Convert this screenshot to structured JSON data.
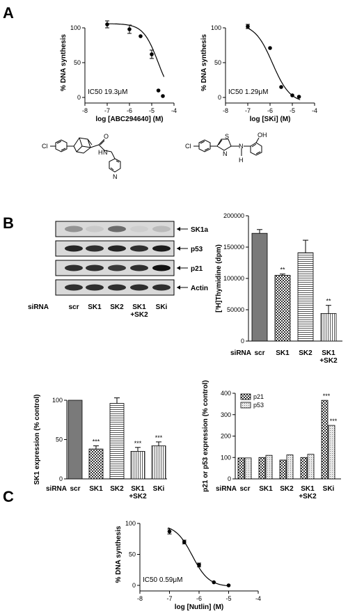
{
  "panels": {
    "a": "A",
    "b": "B",
    "c": "C"
  },
  "chart_data": [
    {
      "id": "a1",
      "type": "scatter",
      "panel": "A",
      "xlabel": "log [ABC294640] (M)",
      "ylabel": "% DNA synthesis",
      "xlim": [
        -8,
        -4
      ],
      "ylim": [
        0,
        100
      ],
      "xticks": [
        "-8",
        "-7",
        "-6",
        "-5",
        "-4"
      ],
      "yticks": [
        "0",
        "50",
        "100"
      ],
      "x": [
        -7,
        -6,
        -5.5,
        -5,
        -4.7,
        -4.5
      ],
      "y": [
        105,
        98,
        88,
        62,
        10,
        2
      ],
      "err": [
        5,
        6,
        0,
        6,
        0,
        0
      ],
      "fit": {
        "top": 106,
        "bottom": -5,
        "log_ic50": -4.714,
        "hill": 1.3
      },
      "annotation": "IC50 19.3μM"
    },
    {
      "id": "a2",
      "type": "scatter",
      "panel": "A",
      "xlabel": "log [SKi] (M)",
      "ylabel": "% DNA synthesis",
      "xlim": [
        -8,
        -4
      ],
      "ylim": [
        0,
        100
      ],
      "xticks": [
        "-8",
        "-7",
        "-6",
        "-5",
        "-4"
      ],
      "yticks": [
        "0",
        "50",
        "100"
      ],
      "x": [
        -7,
        -6,
        -5.5,
        -5,
        -4.7
      ],
      "y": [
        102,
        71,
        15,
        3,
        1
      ],
      "err": [
        3,
        0,
        0,
        0,
        0
      ],
      "fit": {
        "top": 106,
        "bottom": -8,
        "log_ic50": -5.889,
        "hill": 1.1
      },
      "annotation": "IC50 1.29μM"
    },
    {
      "id": "b1",
      "type": "bar",
      "panel": "B",
      "ylabel": "[³H]Thymidine (dpm)",
      "row_label": "siRNA",
      "ylim": [
        0,
        200000
      ],
      "yticks": [
        "0",
        "50000",
        "100000",
        "150000",
        "200000"
      ],
      "categories": [
        "scr",
        "SK1",
        "SK2",
        "SK1 +SK2"
      ],
      "values": [
        172000,
        105000,
        141000,
        44000
      ],
      "err": [
        6000,
        2000,
        20000,
        13000
      ],
      "significance": [
        "",
        "**",
        "",
        "**"
      ]
    },
    {
      "id": "b2",
      "type": "bar",
      "panel": "B",
      "ylabel": "SK1 expression (% control)",
      "row_label": "siRNA",
      "ylim": [
        0,
        100
      ],
      "yticks": [
        "0",
        "50",
        "100"
      ],
      "categories": [
        "scr",
        "SK1",
        "SK2",
        "SK1 +SK2",
        "SKi"
      ],
      "values": [
        100,
        38,
        96,
        35,
        42
      ],
      "err": [
        0,
        4,
        7,
        5,
        5
      ],
      "significance": [
        "",
        "***",
        "",
        "***",
        "***"
      ]
    },
    {
      "id": "b3",
      "type": "bar",
      "panel": "B",
      "ylabel": "p21 or p53 expression (% control)",
      "row_label": "siRNA",
      "ylim": [
        0,
        400
      ],
      "yticks": [
        "0",
        "100",
        "200",
        "300",
        "400"
      ],
      "categories": [
        "scr",
        "SK1",
        "SK2",
        "SK1 +SK2",
        "SKi"
      ],
      "series": [
        {
          "name": "p21",
          "values": [
            98,
            100,
            88,
            100,
            367
          ]
        },
        {
          "name": "p53",
          "values": [
            98,
            110,
            112,
            115,
            250
          ]
        }
      ],
      "significance": [
        "",
        "",
        "",
        "",
        "***"
      ],
      "legend": "top-left"
    },
    {
      "id": "c",
      "type": "scatter",
      "panel": "C",
      "xlabel": "log [Nutlin] (M)",
      "ylabel": "% DNA synthesis",
      "xlim": [
        -8,
        -4
      ],
      "ylim": [
        0,
        100
      ],
      "xticks": [
        "-8",
        "-7",
        "-6",
        "-5",
        "-4"
      ],
      "yticks": [
        "0",
        "50",
        "100"
      ],
      "x": [
        -7,
        -6.5,
        -6,
        -5.5,
        -5
      ],
      "y": [
        87,
        70,
        33,
        5,
        0
      ],
      "err": [
        4,
        3,
        3,
        0,
        0
      ],
      "fit": {
        "top": 98,
        "bottom": -2,
        "log_ic50": -6.229,
        "hill": 1.55
      },
      "annotation": "IC50 0.59μM"
    }
  ],
  "blot": {
    "bands": [
      "SK1a",
      "p53",
      "p21",
      "Actin"
    ],
    "row_label": "siRNA",
    "lanes": [
      "scr",
      "SK1",
      "SK2",
      "SK1 +SK2",
      "SKi"
    ]
  },
  "structures": {
    "a1": [
      "Cl",
      "O",
      "N",
      "H",
      "N"
    ],
    "a2": [
      "Cl",
      "S",
      "N",
      "N",
      "H",
      "OH"
    ]
  }
}
